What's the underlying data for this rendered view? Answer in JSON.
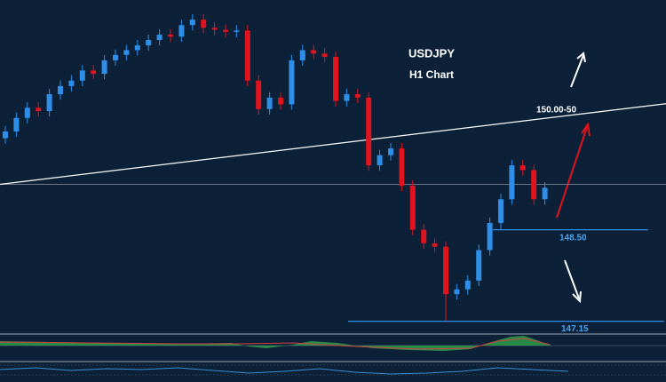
{
  "chart_data": {
    "type": "candlestick",
    "title": "USDJPY",
    "subtitle": "H1 Chart",
    "ylim": [
      147.04,
      151.89
    ],
    "colors": {
      "up": "#2f8fe8",
      "down": "#e0141e"
    },
    "open": [
      149.85,
      149.95,
      150.15,
      150.3,
      150.25,
      150.5,
      150.62,
      150.7,
      150.85,
      150.8,
      151.0,
      151.08,
      151.15,
      151.22,
      151.3,
      151.38,
      151.35,
      151.52,
      151.6,
      151.48,
      151.45,
      151.42,
      151.44,
      150.7,
      150.28,
      150.45,
      150.35,
      151.0,
      151.15,
      151.1,
      151.05,
      150.4,
      150.5,
      150.45,
      149.45,
      149.6,
      149.7,
      149.15,
      148.5,
      148.3,
      148.25,
      147.55,
      147.62,
      147.75,
      148.2,
      148.6,
      148.95,
      149.45,
      149.38,
      148.95
    ],
    "high": [
      150.03,
      150.23,
      150.38,
      150.38,
      150.58,
      150.7,
      150.78,
      150.93,
      150.93,
      151.08,
      151.16,
      151.23,
      151.3,
      151.38,
      151.46,
      151.46,
      151.6,
      151.68,
      151.68,
      151.56,
      151.53,
      151.52,
      151.52,
      150.78,
      150.53,
      150.53,
      151.08,
      151.23,
      151.23,
      151.18,
      151.13,
      150.58,
      150.58,
      150.53,
      149.68,
      149.78,
      149.78,
      149.23,
      148.58,
      148.38,
      148.33,
      147.7,
      147.83,
      148.28,
      148.68,
      149.03,
      149.53,
      149.53,
      149.46,
      149.2
    ],
    "low": [
      149.77,
      149.87,
      150.07,
      150.17,
      150.17,
      150.42,
      150.54,
      150.62,
      150.72,
      150.72,
      150.92,
      151.0,
      151.07,
      151.14,
      151.22,
      151.27,
      151.27,
      151.44,
      151.4,
      151.37,
      151.34,
      151.34,
      150.62,
      150.2,
      150.2,
      150.27,
      150.27,
      150.92,
      151.02,
      150.97,
      150.32,
      150.32,
      150.37,
      149.37,
      149.37,
      149.52,
      149.07,
      148.42,
      148.22,
      148.17,
      147.15,
      147.47,
      147.54,
      147.67,
      148.12,
      148.5,
      148.87,
      149.3,
      148.87,
      148.87
    ],
    "close": [
      149.95,
      150.15,
      150.3,
      150.25,
      150.5,
      150.62,
      150.7,
      150.85,
      150.8,
      151.0,
      151.08,
      151.15,
      151.22,
      151.3,
      151.38,
      151.35,
      151.52,
      151.6,
      151.48,
      151.45,
      151.42,
      151.44,
      150.7,
      150.28,
      150.45,
      150.35,
      151.0,
      151.15,
      151.1,
      151.05,
      150.4,
      150.5,
      150.45,
      149.45,
      149.6,
      149.7,
      149.15,
      148.5,
      148.3,
      148.25,
      147.55,
      147.62,
      147.75,
      148.2,
      148.6,
      148.95,
      149.45,
      149.38,
      148.95,
      149.12
    ],
    "reference_line": 149.17,
    "trendline": {
      "label": "150.00-50",
      "start": 149.17,
      "end": 150.36
    },
    "levels": [
      {
        "value": 148.5,
        "label": "148.50"
      },
      {
        "value": 147.15,
        "label": "147.15"
      }
    ]
  }
}
